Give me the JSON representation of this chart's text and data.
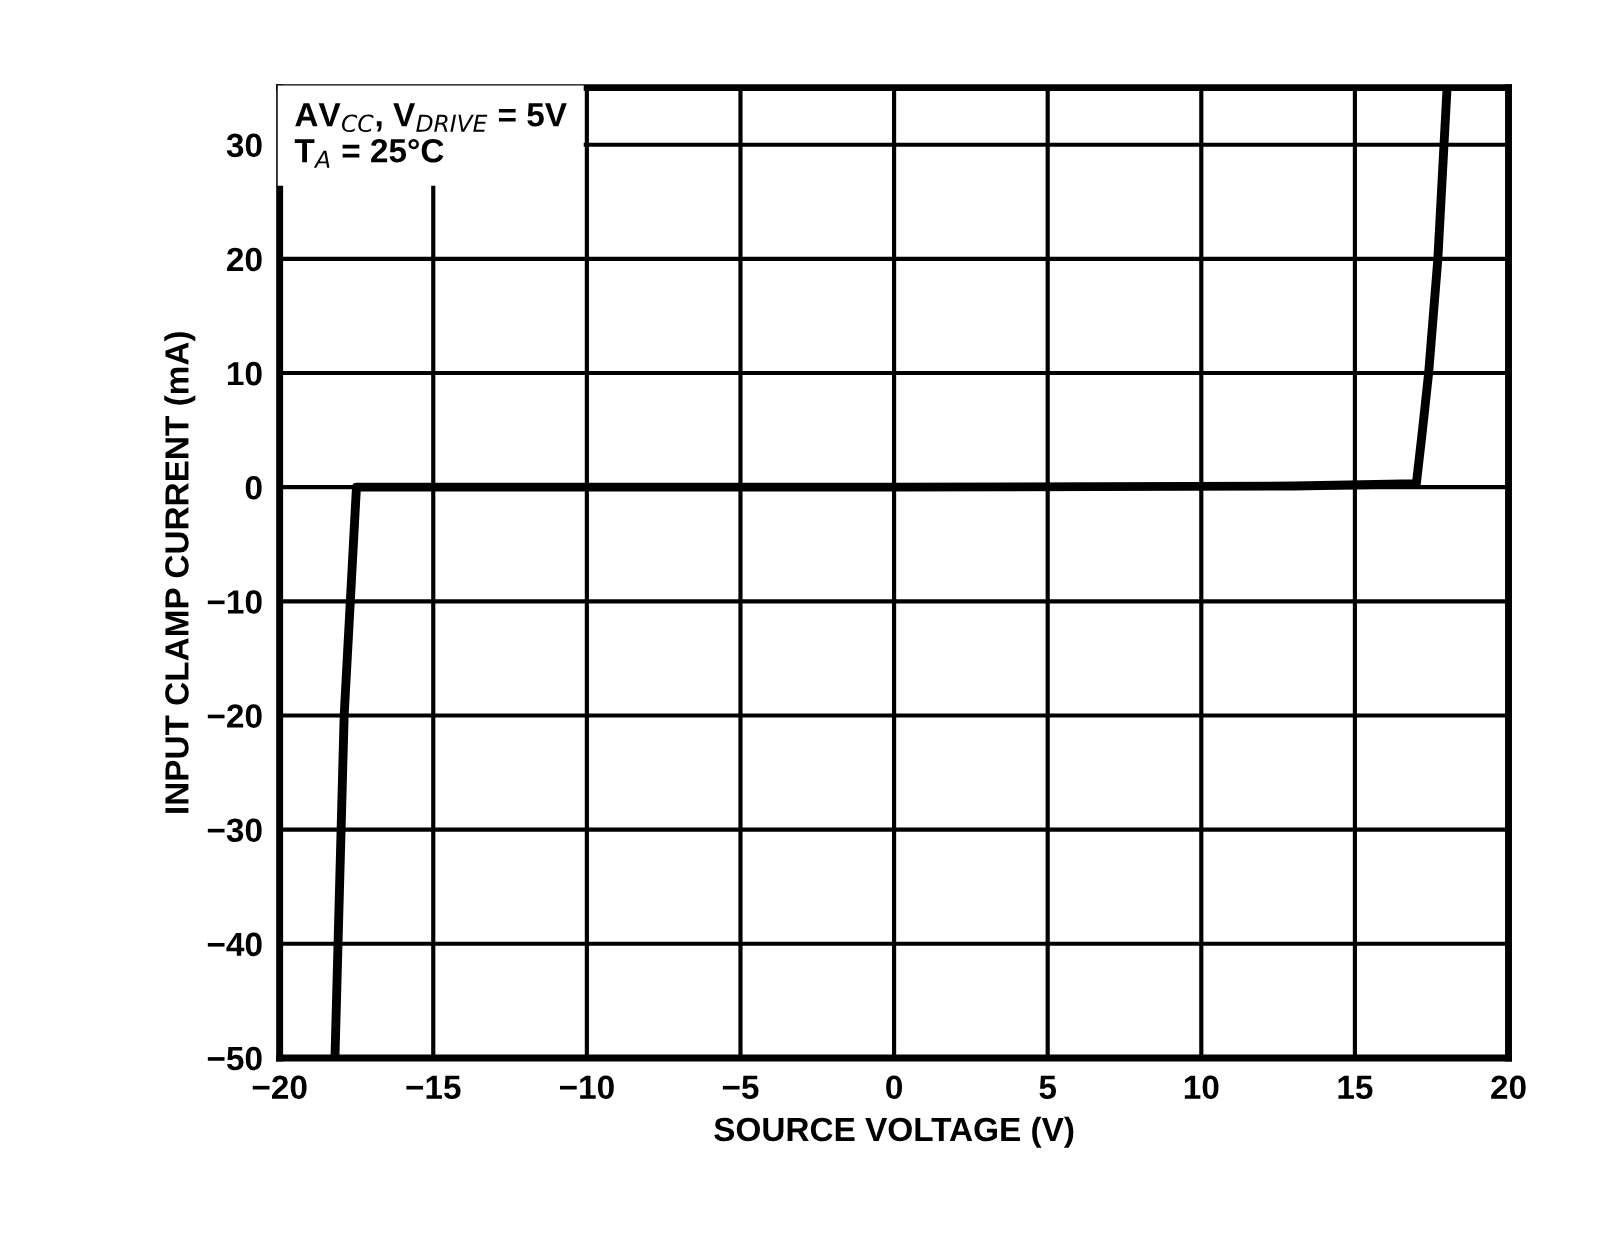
{
  "chart_data": {
    "type": "line",
    "xlabel": "SOURCE VOLTAGE (V)",
    "ylabel": "INPUT CLAMP CURRENT (mA)",
    "annotations": [
      "AV$_{CC}$, V$_{DRIVE}$ = 5V\nT$_{A}$ = 25°C"
    ],
    "series": [
      {
        "color": "#000000",
        "x": [
          -18.2,
          -17.9,
          -17.5,
          0,
          13,
          17.0,
          17.2,
          17.4,
          17.7,
          18.0
        ],
        "values": [
          -50,
          -20,
          0,
          0,
          0.1,
          0.3,
          5,
          10,
          20,
          35
        ]
      }
    ],
    "xlim": [
      -20,
      20
    ],
    "ylim": [
      -50,
      35
    ],
    "xticks": [
      -20,
      -15,
      -10,
      -5,
      0,
      5,
      10,
      15,
      20
    ],
    "yticks": [
      -50,
      -40,
      -30,
      -20,
      -10,
      0,
      10,
      20,
      30
    ],
    "grid": true,
    "legend": false,
    "marker": "none",
    "line_style": "solid"
  }
}
